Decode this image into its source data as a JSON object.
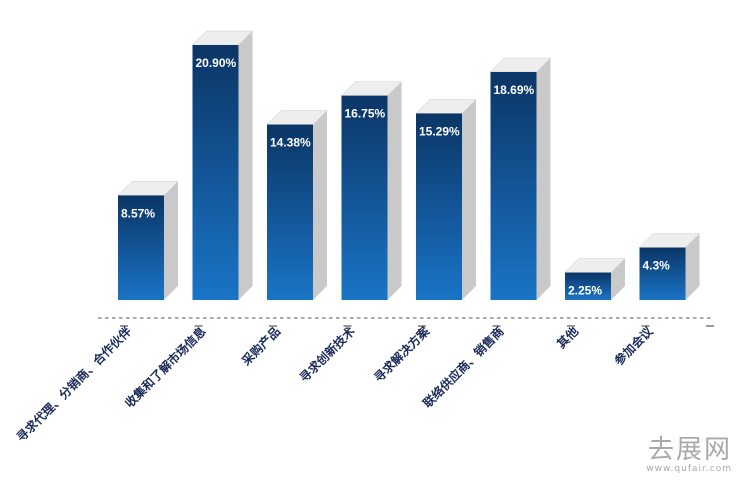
{
  "chart_data": {
    "type": "bar",
    "categories": [
      "寻求代理、分销商、合作伙伴",
      "收集和了解市场信息",
      "采购产品",
      "寻求创新技术",
      "寻求解决方案",
      "联络供应商、销售商",
      "其他",
      "参加会议"
    ],
    "values": [
      8.57,
      20.9,
      14.38,
      16.75,
      15.29,
      18.69,
      2.25,
      4.3
    ],
    "value_labels": [
      "8.57%",
      "20.90%",
      "14.38%",
      "16.75%",
      "15.29%",
      "18.69%",
      "2.25%",
      "4.3%"
    ],
    "unit": "%",
    "ylim": [
      0,
      22
    ],
    "grid": false,
    "legend": "none",
    "style": "3d",
    "colors": {
      "bar_top": "#0b3566",
      "bar_bottom": "#1a74c6",
      "side": "#c9c9c9",
      "top": "#eeeeee"
    }
  },
  "watermark": {
    "brand": "去展网",
    "url": "www.qufair.com"
  }
}
